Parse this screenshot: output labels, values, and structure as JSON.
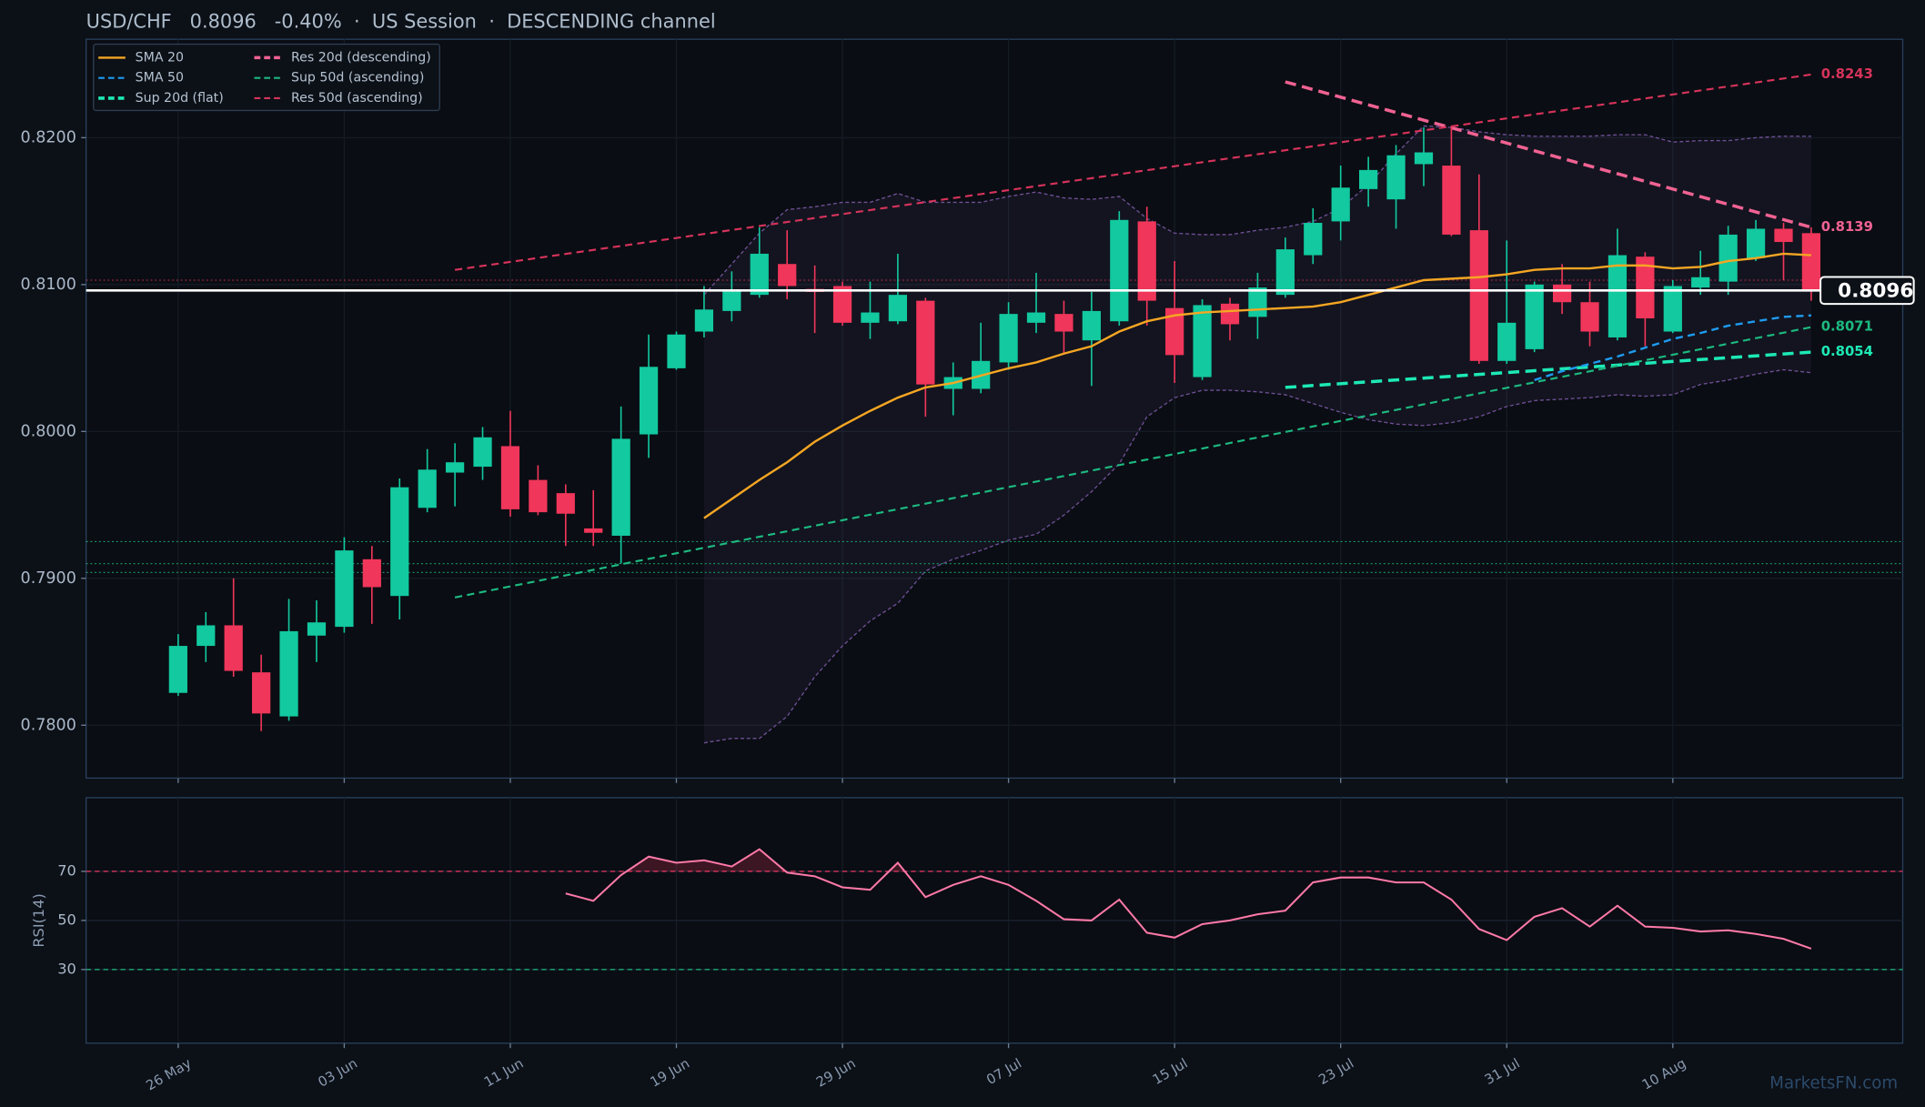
{
  "chart_data": {
    "type": "candlestick",
    "title": "USD/CHF   0.8096   -0.40%  ·  US Session  ·  DESCENDING channel",
    "categories": [
      "26 May",
      null,
      null,
      null,
      null,
      null,
      "03 Jun",
      null,
      null,
      null,
      null,
      null,
      "11 Jun",
      null,
      null,
      null,
      null,
      null,
      "19 Jun",
      null,
      null,
      null,
      null,
      null,
      "29 Jun",
      null,
      null,
      null,
      null,
      null,
      "07 Jul",
      null,
      null,
      null,
      null,
      null,
      "15 Jul",
      null,
      null,
      null,
      null,
      null,
      "23 Jul",
      null,
      null,
      null,
      null,
      null,
      "31 Jul",
      null,
      null,
      null,
      null,
      null,
      "10 Aug",
      null,
      null,
      null,
      null,
      null
    ],
    "open": [
      0.7822,
      0.7854,
      0.7868,
      0.7836,
      0.7806,
      0.7861,
      0.7867,
      0.7913,
      0.7888,
      0.7948,
      0.7972,
      0.7976,
      0.799,
      0.7967,
      0.7958,
      0.7934,
      0.7929,
      0.7998,
      0.8043,
      0.8068,
      0.8082,
      0.8093,
      0.8114,
      0.8097,
      0.8099,
      0.8074,
      0.8075,
      0.8089,
      0.8029,
      0.8029,
      0.8047,
      0.8074,
      0.808,
      0.8062,
      0.8075,
      0.8143,
      0.8084,
      0.8037,
      0.8087,
      0.8078,
      0.8093,
      0.812,
      0.8143,
      0.8165,
      0.8158,
      0.8182,
      0.8181,
      0.8137,
      0.8048,
      0.8056,
      0.81,
      0.8088,
      0.8064,
      0.8119,
      0.8068,
      0.8098,
      0.8102,
      0.8118,
      0.8138,
      0.8135
    ],
    "high": [
      0.7862,
      0.7877,
      0.79,
      0.7848,
      0.7886,
      0.7885,
      0.7928,
      0.7922,
      0.7968,
      0.7988,
      0.7992,
      0.8003,
      0.8014,
      0.7977,
      0.7964,
      0.796,
      0.8017,
      0.8066,
      0.8068,
      0.8099,
      0.8109,
      0.8139,
      0.8137,
      0.8113,
      0.8102,
      0.8102,
      0.8121,
      0.8091,
      0.8047,
      0.8074,
      0.8088,
      0.8108,
      0.8089,
      0.8095,
      0.815,
      0.8153,
      0.8116,
      0.809,
      0.8091,
      0.8108,
      0.8132,
      0.8152,
      0.8181,
      0.8187,
      0.8195,
      0.8207,
      0.8208,
      0.8175,
      0.813,
      0.8102,
      0.8114,
      0.8102,
      0.8138,
      0.8122,
      0.8103,
      0.8123,
      0.814,
      0.8144,
      0.8142,
      0.8139
    ],
    "low": [
      0.782,
      0.7843,
      0.7833,
      0.7796,
      0.7803,
      0.7843,
      0.7863,
      0.7869,
      0.7872,
      0.7945,
      0.7949,
      0.7967,
      0.7942,
      0.7943,
      0.7922,
      0.7922,
      0.791,
      0.7982,
      0.8042,
      0.8064,
      0.8075,
      0.8091,
      0.809,
      0.8067,
      0.8072,
      0.8063,
      0.8073,
      0.801,
      0.8011,
      0.8026,
      0.8042,
      0.8067,
      0.8053,
      0.8031,
      0.8072,
      0.8072,
      0.8033,
      0.8035,
      0.8062,
      0.8063,
      0.8091,
      0.8114,
      0.813,
      0.8153,
      0.8138,
      0.8167,
      0.8133,
      0.8046,
      0.8046,
      0.8054,
      0.808,
      0.8058,
      0.8062,
      0.8058,
      0.8067,
      0.8093,
      0.8093,
      0.8116,
      0.8103,
      0.8089
    ],
    "close": [
      0.7854,
      0.7868,
      0.7837,
      0.7808,
      0.7864,
      0.787,
      0.7919,
      0.7894,
      0.7962,
      0.7974,
      0.7979,
      0.7996,
      0.7947,
      0.7945,
      0.7944,
      0.7931,
      0.7995,
      0.8044,
      0.8066,
      0.8083,
      0.8096,
      0.8121,
      0.8099,
      0.8095,
      0.8074,
      0.8081,
      0.8093,
      0.8032,
      0.8037,
      0.8048,
      0.808,
      0.8081,
      0.8068,
      0.8082,
      0.8144,
      0.8089,
      0.8052,
      0.8086,
      0.8073,
      0.8098,
      0.8124,
      0.8142,
      0.8166,
      0.8178,
      0.8188,
      0.819,
      0.8134,
      0.8048,
      0.8074,
      0.81,
      0.8088,
      0.8068,
      0.812,
      0.8077,
      0.8099,
      0.8105,
      0.8134,
      0.8138,
      0.8129,
      0.8096
    ],
    "up_color": "#12c9a0",
    "down_color": "#f0365a",
    "ylim": [
      0.7764,
      0.8267
    ],
    "yticks": [
      {
        "value": 0.78,
        "label": "0.7800"
      },
      {
        "value": 0.79,
        "label": "0.7900"
      },
      {
        "value": 0.8,
        "label": "0.8000"
      },
      {
        "value": 0.81,
        "label": "0.8100"
      },
      {
        "value": 0.82,
        "label": "0.8200"
      }
    ],
    "grid": true,
    "legend": "upper left",
    "overlays": [
      {
        "name": "SMA 20",
        "color": "#f5a623",
        "style": "solid",
        "values": [
          null,
          null,
          null,
          null,
          null,
          null,
          null,
          null,
          null,
          null,
          null,
          null,
          null,
          null,
          null,
          null,
          null,
          null,
          null,
          0.7941,
          0.7954,
          0.7967,
          0.7979,
          0.7993,
          0.8004,
          0.8014,
          0.8023,
          0.803,
          0.8033,
          0.8038,
          0.8043,
          0.8047,
          0.8053,
          0.8058,
          0.8068,
          0.8075,
          0.8079,
          0.8081,
          0.8082,
          0.8083,
          0.8084,
          0.8085,
          0.8088,
          0.8093,
          0.8098,
          0.8103,
          0.8104,
          0.8105,
          0.8107,
          0.811,
          0.8111,
          0.8111,
          0.8113,
          0.8113,
          0.8111,
          0.8112,
          0.8116,
          0.8118,
          0.8121,
          0.812
        ]
      },
      {
        "name": "SMA 50",
        "color": "#1e9bf0",
        "style": "dashed",
        "values": [
          null,
          null,
          null,
          null,
          null,
          null,
          null,
          null,
          null,
          null,
          null,
          null,
          null,
          null,
          null,
          null,
          null,
          null,
          null,
          null,
          null,
          null,
          null,
          null,
          null,
          null,
          null,
          null,
          null,
          null,
          null,
          null,
          null,
          null,
          null,
          null,
          null,
          null,
          null,
          null,
          null,
          null,
          null,
          null,
          null,
          null,
          null,
          null,
          null,
          0.8035,
          0.8041,
          0.8046,
          0.8051,
          0.8057,
          0.8063,
          0.8067,
          0.8072,
          0.8075,
          0.8078,
          0.8079
        ]
      }
    ],
    "bands": {
      "color": "#6e4f94",
      "upper": [
        null,
        null,
        null,
        null,
        null,
        null,
        null,
        null,
        null,
        null,
        null,
        null,
        null,
        null,
        null,
        null,
        null,
        null,
        null,
        0.8093,
        0.8114,
        0.8135,
        0.8151,
        0.8153,
        0.8156,
        0.8156,
        0.8162,
        0.8156,
        0.8156,
        0.8156,
        0.816,
        0.8163,
        0.8159,
        0.8158,
        0.816,
        0.8145,
        0.8135,
        0.8134,
        0.8134,
        0.8137,
        0.8139,
        0.8143,
        0.8152,
        0.8168,
        0.8189,
        0.8208,
        0.8207,
        0.8204,
        0.8202,
        0.8201,
        0.8201,
        0.8201,
        0.8202,
        0.8202,
        0.8197,
        0.8198,
        0.8198,
        0.82,
        0.8201,
        0.8201
      ],
      "lower": [
        null,
        null,
        null,
        null,
        null,
        null,
        null,
        null,
        null,
        null,
        null,
        null,
        null,
        null,
        null,
        null,
        null,
        null,
        null,
        0.7788,
        0.7791,
        0.7791,
        0.7806,
        0.7833,
        0.7854,
        0.7871,
        0.7883,
        0.7905,
        0.7913,
        0.7919,
        0.7926,
        0.793,
        0.7943,
        0.7959,
        0.7978,
        0.801,
        0.8023,
        0.8028,
        0.8028,
        0.8027,
        0.8025,
        0.8019,
        0.8013,
        0.8008,
        0.8005,
        0.8004,
        0.8006,
        0.801,
        0.8017,
        0.8021,
        0.8022,
        0.8023,
        0.8025,
        0.8024,
        0.8025,
        0.8032,
        0.8035,
        0.8039,
        0.8042,
        0.804
      ]
    },
    "trendlines": [
      {
        "name": "Sup 20d (flat)",
        "color": "#1de9b6",
        "style": "bold-dashed",
        "x": [
          40,
          59
        ],
        "values": [
          0.803,
          0.8054
        ],
        "value_labels": [
          null,
          "0.8054"
        ]
      },
      {
        "name": "Res 20d (descending)",
        "color": "#f06292",
        "style": "bold-dashed",
        "x": [
          40,
          59
        ],
        "values": [
          0.8238,
          0.8139
        ],
        "value_labels": [
          null,
          "0.8139"
        ]
      },
      {
        "name": "Sup 50d (ascending)",
        "color": "#1db980",
        "style": "dashed",
        "x": [
          10,
          59
        ],
        "values": [
          0.7887,
          0.8071
        ],
        "value_labels": [
          null,
          "0.8071"
        ]
      },
      {
        "name": "Res 50d (ascending)",
        "color": "#d6335b",
        "style": "dashed",
        "x": [
          10,
          59
        ],
        "values": [
          0.811,
          0.8243
        ],
        "value_labels": [
          null,
          "0.8243"
        ]
      }
    ],
    "levels": [
      {
        "value": 0.8103,
        "color": "#d6335b"
      },
      {
        "value": 0.7925,
        "color": "#1db980"
      },
      {
        "value": 0.791,
        "color": "#1db980"
      },
      {
        "value": 0.7904,
        "color": "#1db980"
      }
    ],
    "last_price": {
      "value": 0.8096,
      "label": "0.8096"
    },
    "watermark": "MarketsFN.com",
    "rsi": {
      "type": "line",
      "ylabel": "RSI(14)",
      "color": "#ff79a8",
      "ylim": [
        0,
        100
      ],
      "yticks": [
        30,
        50,
        70
      ],
      "thresholds": [
        {
          "value": 70,
          "color": "#d6335b"
        },
        {
          "value": 30,
          "color": "#1db980"
        }
      ],
      "values": [
        null,
        null,
        null,
        null,
        null,
        null,
        null,
        null,
        null,
        null,
        null,
        null,
        null,
        null,
        61,
        58,
        68.5,
        76,
        73.5,
        74.5,
        72,
        79,
        69.5,
        68,
        63.5,
        62.5,
        73.5,
        59.5,
        64.5,
        68,
        64.5,
        58,
        50.5,
        50,
        58.5,
        45,
        43,
        48.5,
        50,
        52.5,
        54,
        65.5,
        67.5,
        67.5,
        65.5,
        65.5,
        58.5,
        46.5,
        42,
        51.5,
        55,
        47.5,
        56,
        47.5,
        47,
        45.5,
        46,
        44.5,
        42.5,
        38.5
      ]
    }
  }
}
